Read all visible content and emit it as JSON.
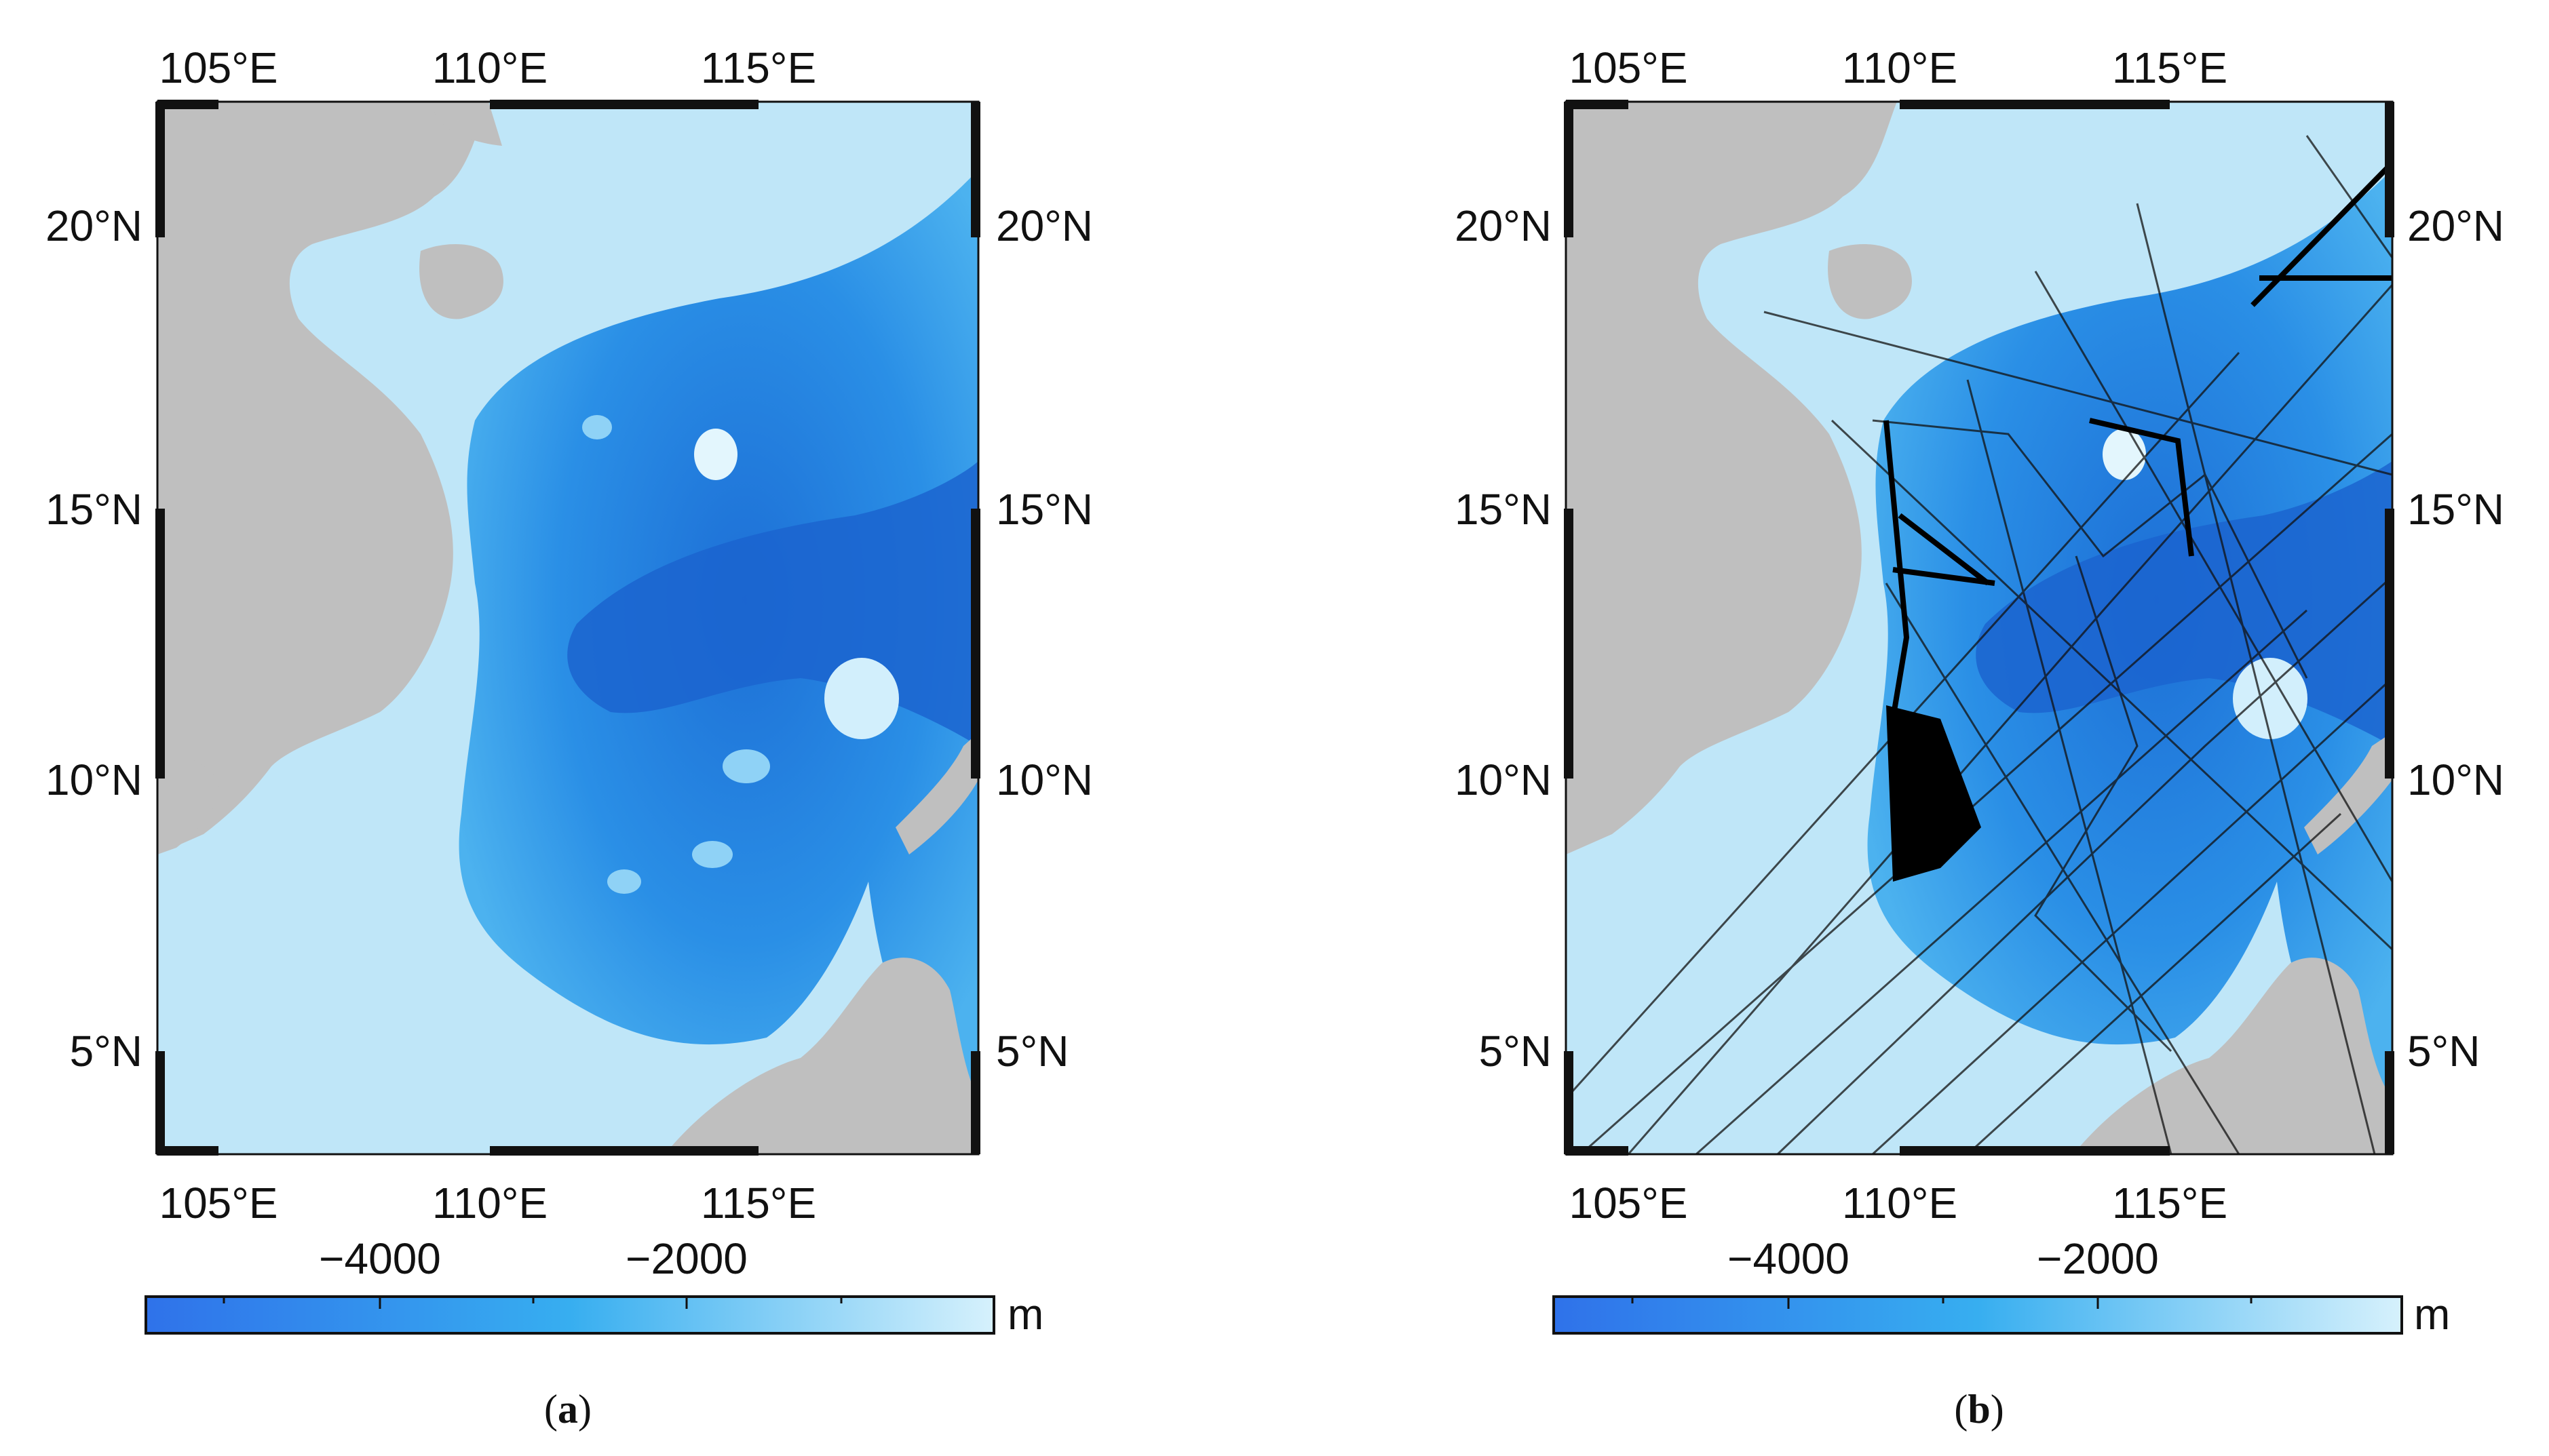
{
  "panels": [
    {
      "id": "a",
      "caption_letter": "a",
      "x_ticks": [
        "105°E",
        "110°E",
        "115°E"
      ],
      "y_ticks_left": [
        "20°N",
        "15°N",
        "10°N",
        "5°N"
      ],
      "y_ticks_right": [
        "20°N",
        "15°N",
        "10°N",
        "5°N"
      ],
      "colorbar": {
        "tick_labels": [
          "−4000",
          "−2000"
        ],
        "unit": "m"
      },
      "shiptracks": false
    },
    {
      "id": "b",
      "caption_letter": "b",
      "x_ticks": [
        "105°E",
        "110°E",
        "115°E"
      ],
      "y_ticks_left": [
        "20°N",
        "15°N",
        "10°N",
        "5°N"
      ],
      "y_ticks_right": [
        "20°N",
        "15°N",
        "10°N",
        "5°N"
      ],
      "colorbar": {
        "tick_labels": [
          "−4000",
          "−2000"
        ],
        "unit": "m"
      },
      "shiptracks": true
    }
  ],
  "map_extent": {
    "lon_min": 104,
    "lon_max": 119,
    "lat_min": 3,
    "lat_max": 22
  },
  "colors": {
    "land": "#bfbfbf",
    "shelf": "#bfe6f8",
    "deep": "#1f7fe0",
    "mid": "#3aa3ec",
    "colorbar_start": "#2f72ea",
    "colorbar_mid": "#37aef0",
    "colorbar_end": "#d6f1fc",
    "tracks": "#111111"
  }
}
